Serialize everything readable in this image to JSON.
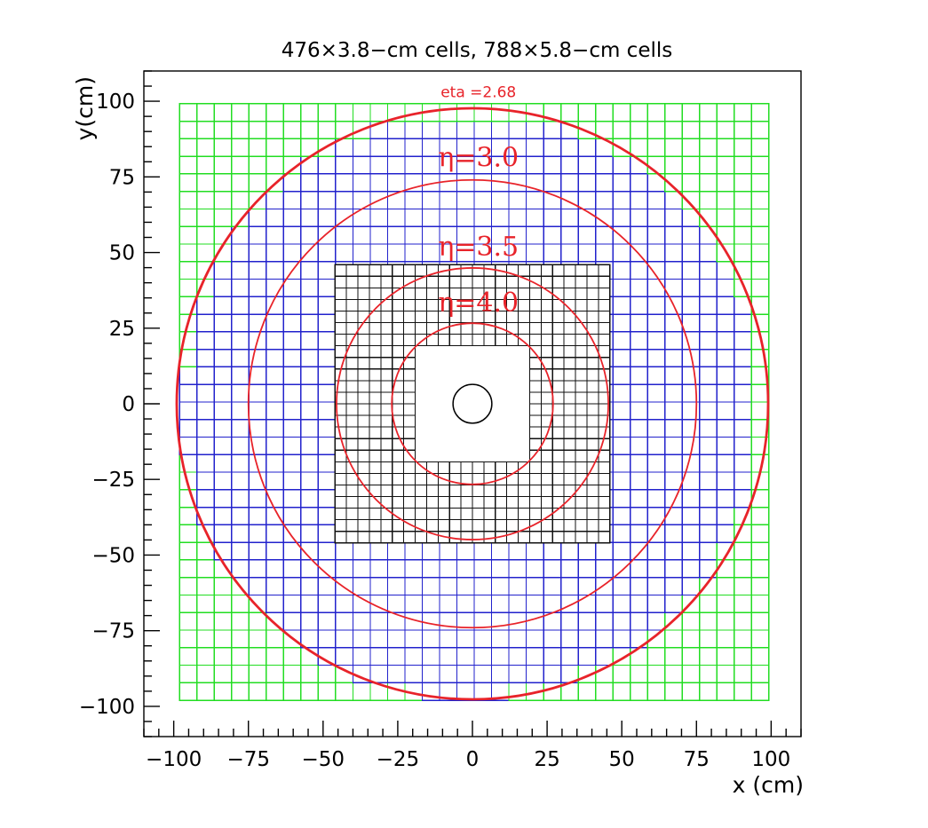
{
  "title": "476×3.8−cm cells, 788×5.8−cm cells",
  "xlabel": "x (cm)",
  "ylabel": "y(cm)",
  "colors": {
    "large_cells": "#2222cc",
    "corner_cells": "#22dd22",
    "small_cells": "#111111",
    "eta_circles": "#e8232a",
    "frame": "#000000"
  },
  "axes": {
    "xlim": [
      -110,
      110
    ],
    "ylim": [
      -110,
      110
    ],
    "x_ticks": [
      -100,
      -75,
      -50,
      -25,
      0,
      25,
      50,
      75,
      100
    ],
    "y_ticks": [
      -100,
      -75,
      -50,
      -25,
      0,
      25,
      50,
      75,
      100
    ],
    "x_tick_labels": [
      "−100",
      "−75",
      "−50",
      "−25",
      "0",
      "25",
      "50",
      "75",
      "100"
    ],
    "y_tick_labels": [
      "−100",
      "−75",
      "−50",
      "−25",
      "0",
      "25",
      "50",
      "75",
      "100"
    ]
  },
  "detector": {
    "large_cell_size_cm": 5.8,
    "large_cell_count": 788,
    "small_cell_size_cm": 3.8,
    "small_cell_count": 476,
    "outer_half_width_cm": 98,
    "small_region_half_width_cm": 46,
    "central_hole_half_width_cm": 19,
    "beam_pipe_radius_cm": 6.5
  },
  "eta_circles": [
    {
      "label": "eta =2.68",
      "radius_cm": 99
    },
    {
      "label": "η=3.0",
      "radius_cm": 75
    },
    {
      "label": "η=3.5",
      "radius_cm": 45.5
    },
    {
      "label": "η=4.0",
      "radius_cm": 27
    }
  ]
}
